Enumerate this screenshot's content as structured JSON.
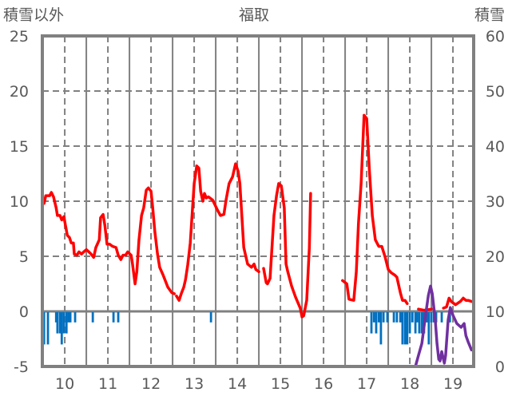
{
  "chart_data": {
    "type": "line",
    "title": "福取",
    "ylabel_left": "積雪以外",
    "ylabel_right": "積雪",
    "xlim": [
      9.48,
      19.48
    ],
    "ylim_left": [
      -5,
      25
    ],
    "ylim_right": [
      0,
      60
    ],
    "x_ticks": [
      "10",
      "11",
      "12",
      "13",
      "14",
      "15",
      "16",
      "17",
      "18",
      "19"
    ],
    "y_ticks_left": [
      "-5",
      "0",
      "5",
      "10",
      "15",
      "20",
      "25"
    ],
    "y_ticks_right": [
      "0",
      "10",
      "20",
      "30",
      "40",
      "50",
      "60"
    ],
    "grid": true,
    "colors": {
      "red_series": "#ff0000",
      "bar_series": "#0070c0",
      "snow_series": "#7030a0",
      "frame": "#808080"
    },
    "series": [
      {
        "name": "red",
        "axis": "left",
        "kind": "line",
        "segments": [
          [
            [
              9.52,
              9.8
            ],
            [
              9.56,
              10.5
            ],
            [
              9.65,
              10.5
            ],
            [
              9.69,
              10.8
            ],
            [
              9.74,
              10.4
            ],
            [
              9.8,
              9.4
            ],
            [
              9.83,
              8.7
            ],
            [
              9.89,
              8.7
            ],
            [
              9.93,
              8.3
            ],
            [
              9.98,
              8.6
            ],
            [
              10.02,
              7.7
            ],
            [
              10.06,
              6.9
            ],
            [
              10.11,
              6.7
            ],
            [
              10.15,
              6.2
            ],
            [
              10.2,
              6.2
            ],
            [
              10.22,
              5.2
            ],
            [
              10.28,
              5.1
            ],
            [
              10.33,
              5.4
            ],
            [
              10.39,
              5.2
            ],
            [
              10.44,
              5.4
            ],
            [
              10.5,
              5.6
            ],
            [
              10.56,
              5.4
            ],
            [
              10.61,
              5.2
            ],
            [
              10.67,
              4.9
            ],
            [
              10.72,
              5.8
            ],
            [
              10.8,
              6.5
            ],
            [
              10.83,
              8.5
            ],
            [
              10.89,
              8.8
            ],
            [
              10.93,
              7.8
            ],
            [
              10.98,
              6.1
            ],
            [
              11.04,
              6.1
            ],
            [
              11.11,
              5.9
            ],
            [
              11.19,
              5.8
            ],
            [
              11.24,
              5.1
            ],
            [
              11.3,
              4.7
            ],
            [
              11.35,
              5.1
            ],
            [
              11.41,
              5.1
            ],
            [
              11.46,
              5.4
            ],
            [
              11.54,
              5.1
            ],
            [
              11.57,
              4.3
            ],
            [
              11.63,
              2.5
            ],
            [
              11.67,
              3.6
            ],
            [
              11.72,
              6.5
            ],
            [
              11.78,
              8.7
            ],
            [
              11.83,
              9.4
            ],
            [
              11.89,
              11.0
            ],
            [
              11.94,
              11.2
            ],
            [
              12.0,
              10.9
            ],
            [
              12.04,
              9.4
            ],
            [
              12.09,
              7.2
            ],
            [
              12.15,
              5.2
            ],
            [
              12.2,
              4.0
            ],
            [
              12.28,
              3.3
            ],
            [
              12.39,
              2.2
            ],
            [
              12.48,
              1.7
            ],
            [
              12.54,
              1.6
            ]
          ],
          [
            [
              12.59,
              1.4
            ],
            [
              12.65,
              1.0
            ],
            [
              12.7,
              1.6
            ],
            [
              12.76,
              2.2
            ],
            [
              12.8,
              2.9
            ],
            [
              12.85,
              4.2
            ],
            [
              12.91,
              6.2
            ],
            [
              12.94,
              8.0
            ],
            [
              13.0,
              11.6
            ],
            [
              13.06,
              13.2
            ],
            [
              13.11,
              13.0
            ],
            [
              13.15,
              10.9
            ],
            [
              13.2,
              10.0
            ],
            [
              13.24,
              10.7
            ],
            [
              13.28,
              10.3
            ],
            [
              13.33,
              10.4
            ],
            [
              13.43,
              10.1
            ],
            [
              13.54,
              9.2
            ],
            [
              13.61,
              8.7
            ],
            [
              13.69,
              8.8
            ],
            [
              13.74,
              10.1
            ],
            [
              13.81,
              11.6
            ],
            [
              13.89,
              12.2
            ],
            [
              13.96,
              13.4
            ],
            [
              14.02,
              12.7
            ],
            [
              14.06,
              11.6
            ],
            [
              14.15,
              5.8
            ],
            [
              14.24,
              4.3
            ],
            [
              14.33,
              4.0
            ],
            [
              14.39,
              4.3
            ],
            [
              14.43,
              3.8
            ],
            [
              14.5,
              3.6
            ]
          ],
          [
            [
              14.61,
              3.9
            ],
            [
              14.67,
              2.6
            ],
            [
              14.7,
              2.5
            ],
            [
              14.76,
              3.0
            ],
            [
              14.85,
              8.7
            ],
            [
              14.91,
              10.5
            ],
            [
              14.96,
              11.6
            ],
            [
              15.02,
              11.4
            ],
            [
              15.09,
              9.4
            ],
            [
              15.13,
              4.3
            ],
            [
              15.17,
              3.6
            ],
            [
              15.26,
              2.3
            ],
            [
              15.35,
              1.3
            ],
            [
              15.46,
              0.3
            ],
            [
              15.5,
              -0.5
            ],
            [
              15.54,
              -0.4
            ],
            [
              15.61,
              1.0
            ],
            [
              15.67,
              5.8
            ],
            [
              15.7,
              10.7
            ]
          ],
          [
            [
              16.44,
              2.8
            ],
            [
              16.54,
              2.5
            ],
            [
              16.59,
              1.1
            ],
            [
              16.7,
              1.0
            ],
            [
              16.76,
              3.6
            ],
            [
              16.81,
              8.0
            ],
            [
              16.87,
              11.6
            ],
            [
              16.94,
              17.8
            ],
            [
              17.0,
              17.5
            ],
            [
              17.06,
              13.0
            ],
            [
              17.13,
              8.7
            ],
            [
              17.2,
              6.5
            ],
            [
              17.28,
              5.9
            ],
            [
              17.35,
              5.9
            ],
            [
              17.43,
              4.9
            ],
            [
              17.5,
              3.8
            ],
            [
              17.57,
              3.5
            ],
            [
              17.65,
              3.3
            ],
            [
              17.7,
              3.1
            ],
            [
              17.78,
              1.7
            ],
            [
              17.83,
              1.0
            ],
            [
              17.89,
              1.0
            ],
            [
              17.94,
              0.7
            ]
          ],
          [
            [
              18.2,
              0.2
            ],
            [
              18.33,
              0.1
            ],
            [
              18.5,
              0.2
            ]
          ],
          [
            [
              18.78,
              0.3
            ],
            [
              18.85,
              0.4
            ],
            [
              18.91,
              1.2
            ],
            [
              18.96,
              0.9
            ],
            [
              19.06,
              0.6
            ],
            [
              19.17,
              0.9
            ],
            [
              19.24,
              1.2
            ],
            [
              19.3,
              1.0
            ],
            [
              19.35,
              1.0
            ],
            [
              19.43,
              0.9
            ]
          ]
        ]
      },
      {
        "name": "bars",
        "axis": "left",
        "kind": "bar",
        "points": [
          [
            9.52,
            -3
          ],
          [
            9.61,
            -3
          ],
          [
            9.8,
            -1
          ],
          [
            9.83,
            -2
          ],
          [
            9.89,
            -2
          ],
          [
            9.93,
            -3
          ],
          [
            9.98,
            -2
          ],
          [
            10.04,
            -2
          ],
          [
            10.09,
            -1
          ],
          [
            10.13,
            -1
          ],
          [
            10.24,
            -1
          ],
          [
            10.65,
            -1
          ],
          [
            11.13,
            -1
          ],
          [
            11.24,
            -1
          ],
          [
            13.39,
            -1
          ],
          [
            17.11,
            -2
          ],
          [
            17.17,
            -1
          ],
          [
            17.22,
            -2
          ],
          [
            17.28,
            -1
          ],
          [
            17.33,
            -3
          ],
          [
            17.39,
            -1
          ],
          [
            17.48,
            -1
          ],
          [
            17.63,
            -1
          ],
          [
            17.7,
            -1
          ],
          [
            17.78,
            -1
          ],
          [
            17.83,
            -3
          ],
          [
            17.89,
            -3
          ],
          [
            17.94,
            -3
          ],
          [
            18.0,
            -2
          ],
          [
            18.06,
            -1
          ],
          [
            18.13,
            -2
          ],
          [
            18.17,
            -1
          ],
          [
            18.22,
            -2
          ],
          [
            18.28,
            -2
          ],
          [
            18.33,
            -2
          ],
          [
            18.39,
            -1
          ],
          [
            18.44,
            -3
          ],
          [
            18.5,
            -1
          ],
          [
            18.56,
            -1
          ],
          [
            18.61,
            -1
          ],
          [
            18.74,
            -1
          ],
          [
            18.93,
            -1
          ]
        ]
      },
      {
        "name": "snow",
        "axis": "right",
        "kind": "line",
        "segments": [
          [
            [
              10.13,
              0
            ],
            [
              12.5,
              0
            ]
          ],
          [
            [
              14.06,
              0
            ],
            [
              16.0,
              0
            ]
          ],
          [
            [
              16.46,
              0
            ],
            [
              18.13,
              0
            ],
            [
              18.2,
              2.0
            ],
            [
              18.28,
              4.2
            ],
            [
              18.35,
              8.5
            ],
            [
              18.43,
              12.9
            ],
            [
              18.48,
              14.6
            ],
            [
              18.52,
              13.2
            ],
            [
              18.59,
              8.5
            ],
            [
              18.63,
              4.2
            ],
            [
              18.67,
              1.3
            ],
            [
              18.7,
              1.0
            ],
            [
              18.74,
              2.7
            ],
            [
              18.8,
              0.6
            ],
            [
              18.83,
              2.0
            ],
            [
              18.89,
              8.5
            ],
            [
              18.94,
              10.7
            ],
            [
              19.0,
              9.3
            ],
            [
              19.09,
              7.8
            ],
            [
              19.19,
              7.1
            ],
            [
              19.26,
              7.8
            ],
            [
              19.3,
              5.6
            ],
            [
              19.35,
              4.5
            ],
            [
              19.43,
              3.0
            ]
          ]
        ]
      }
    ]
  }
}
